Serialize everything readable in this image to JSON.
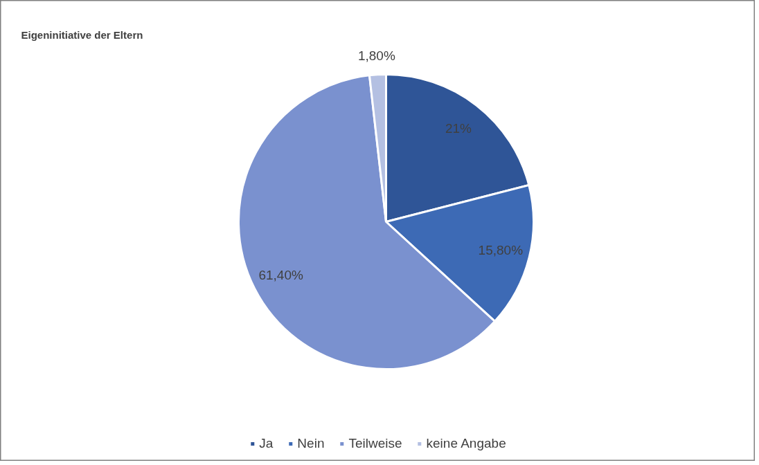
{
  "chart_data": {
    "type": "pie",
    "title": "Eigeninitiative der Eltern",
    "categories": [
      "Ja",
      "Nein",
      "Teilweise",
      "keine Angabe"
    ],
    "values": [
      21,
      15.8,
      61.4,
      1.8
    ],
    "value_labels": [
      "21%",
      "15,80%",
      "61,40%",
      "1,80%"
    ],
    "colors": [
      "#2f5597",
      "#3d6ab5",
      "#7a91cf",
      "#b4c0e2"
    ],
    "legend": "bottom"
  }
}
